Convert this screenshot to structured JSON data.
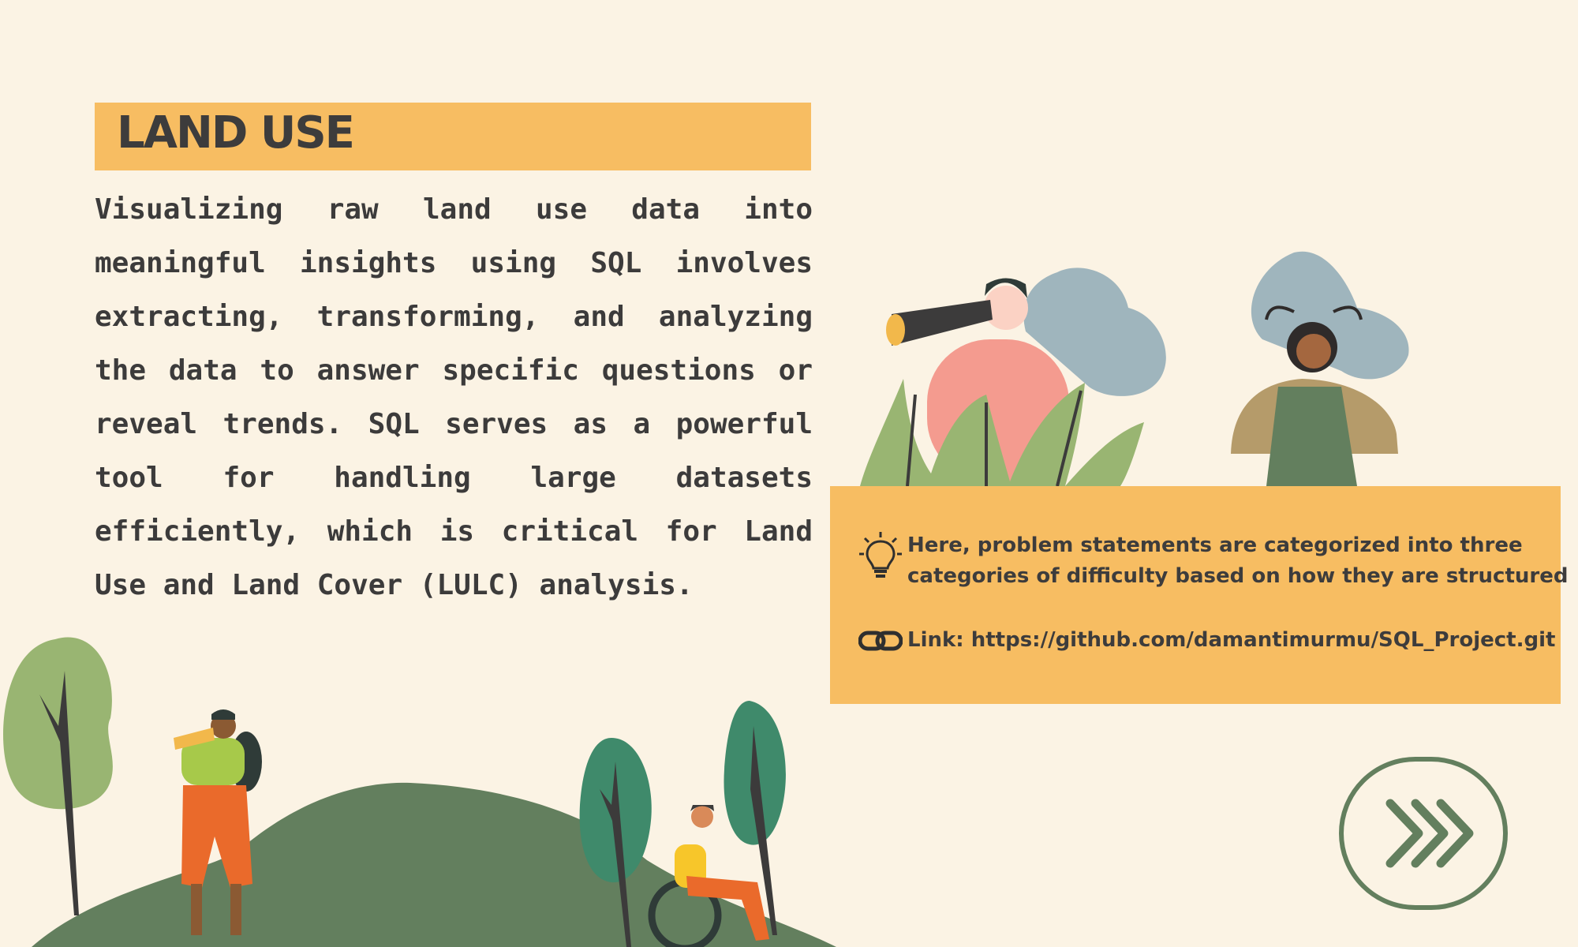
{
  "title": "LAND USE",
  "description": "Visualizing raw land use data into meaningful insights using SQL involves extracting, transforming, and analyzing the data to answer specific questions or reveal trends. SQL serves as a powerful tool for handling large datasets efficiently, which is critical for Land Use and Land Cover (LULC) analysis.",
  "info": {
    "note_icon": "lightbulb-icon",
    "note_line1": "Here, problem statements are categorized into three",
    "note_line2": "categories of difficulty based on how they are structured",
    "link_icon": "chain-link-icon",
    "link_text": "Link: https://github.com/damantimurmu/SQL_Project.git"
  },
  "next_button": {
    "icon": "triple-chevron-right-icon"
  },
  "colors": {
    "background": "#fbf3e4",
    "accent": "#f7bd62",
    "text": "#3c3b3b",
    "green": "#637f5e"
  }
}
